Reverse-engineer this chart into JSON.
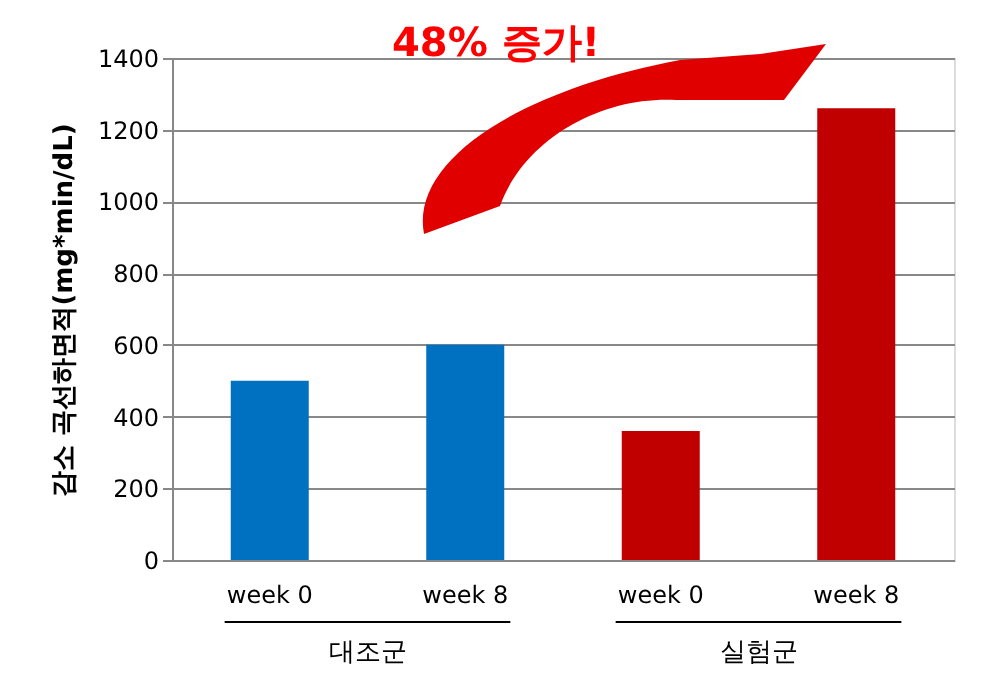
{
  "chart_data": {
    "type": "bar",
    "categories": [
      "week 0",
      "week 8",
      "week 0",
      "week 8"
    ],
    "values": [
      500,
      600,
      360,
      1260
    ],
    "colors": [
      "#0070c0",
      "#0070c0",
      "#c00000",
      "#c00000"
    ],
    "ylabel": "감소 곡선하면적(mg*min/dL)",
    "ylim": [
      0,
      1400
    ],
    "yticks": [
      0,
      200,
      400,
      600,
      800,
      1000,
      1200,
      1400
    ],
    "grid": "y",
    "annotations": [
      "48% 증가!",
      "대조군",
      "실험군"
    ]
  }
}
